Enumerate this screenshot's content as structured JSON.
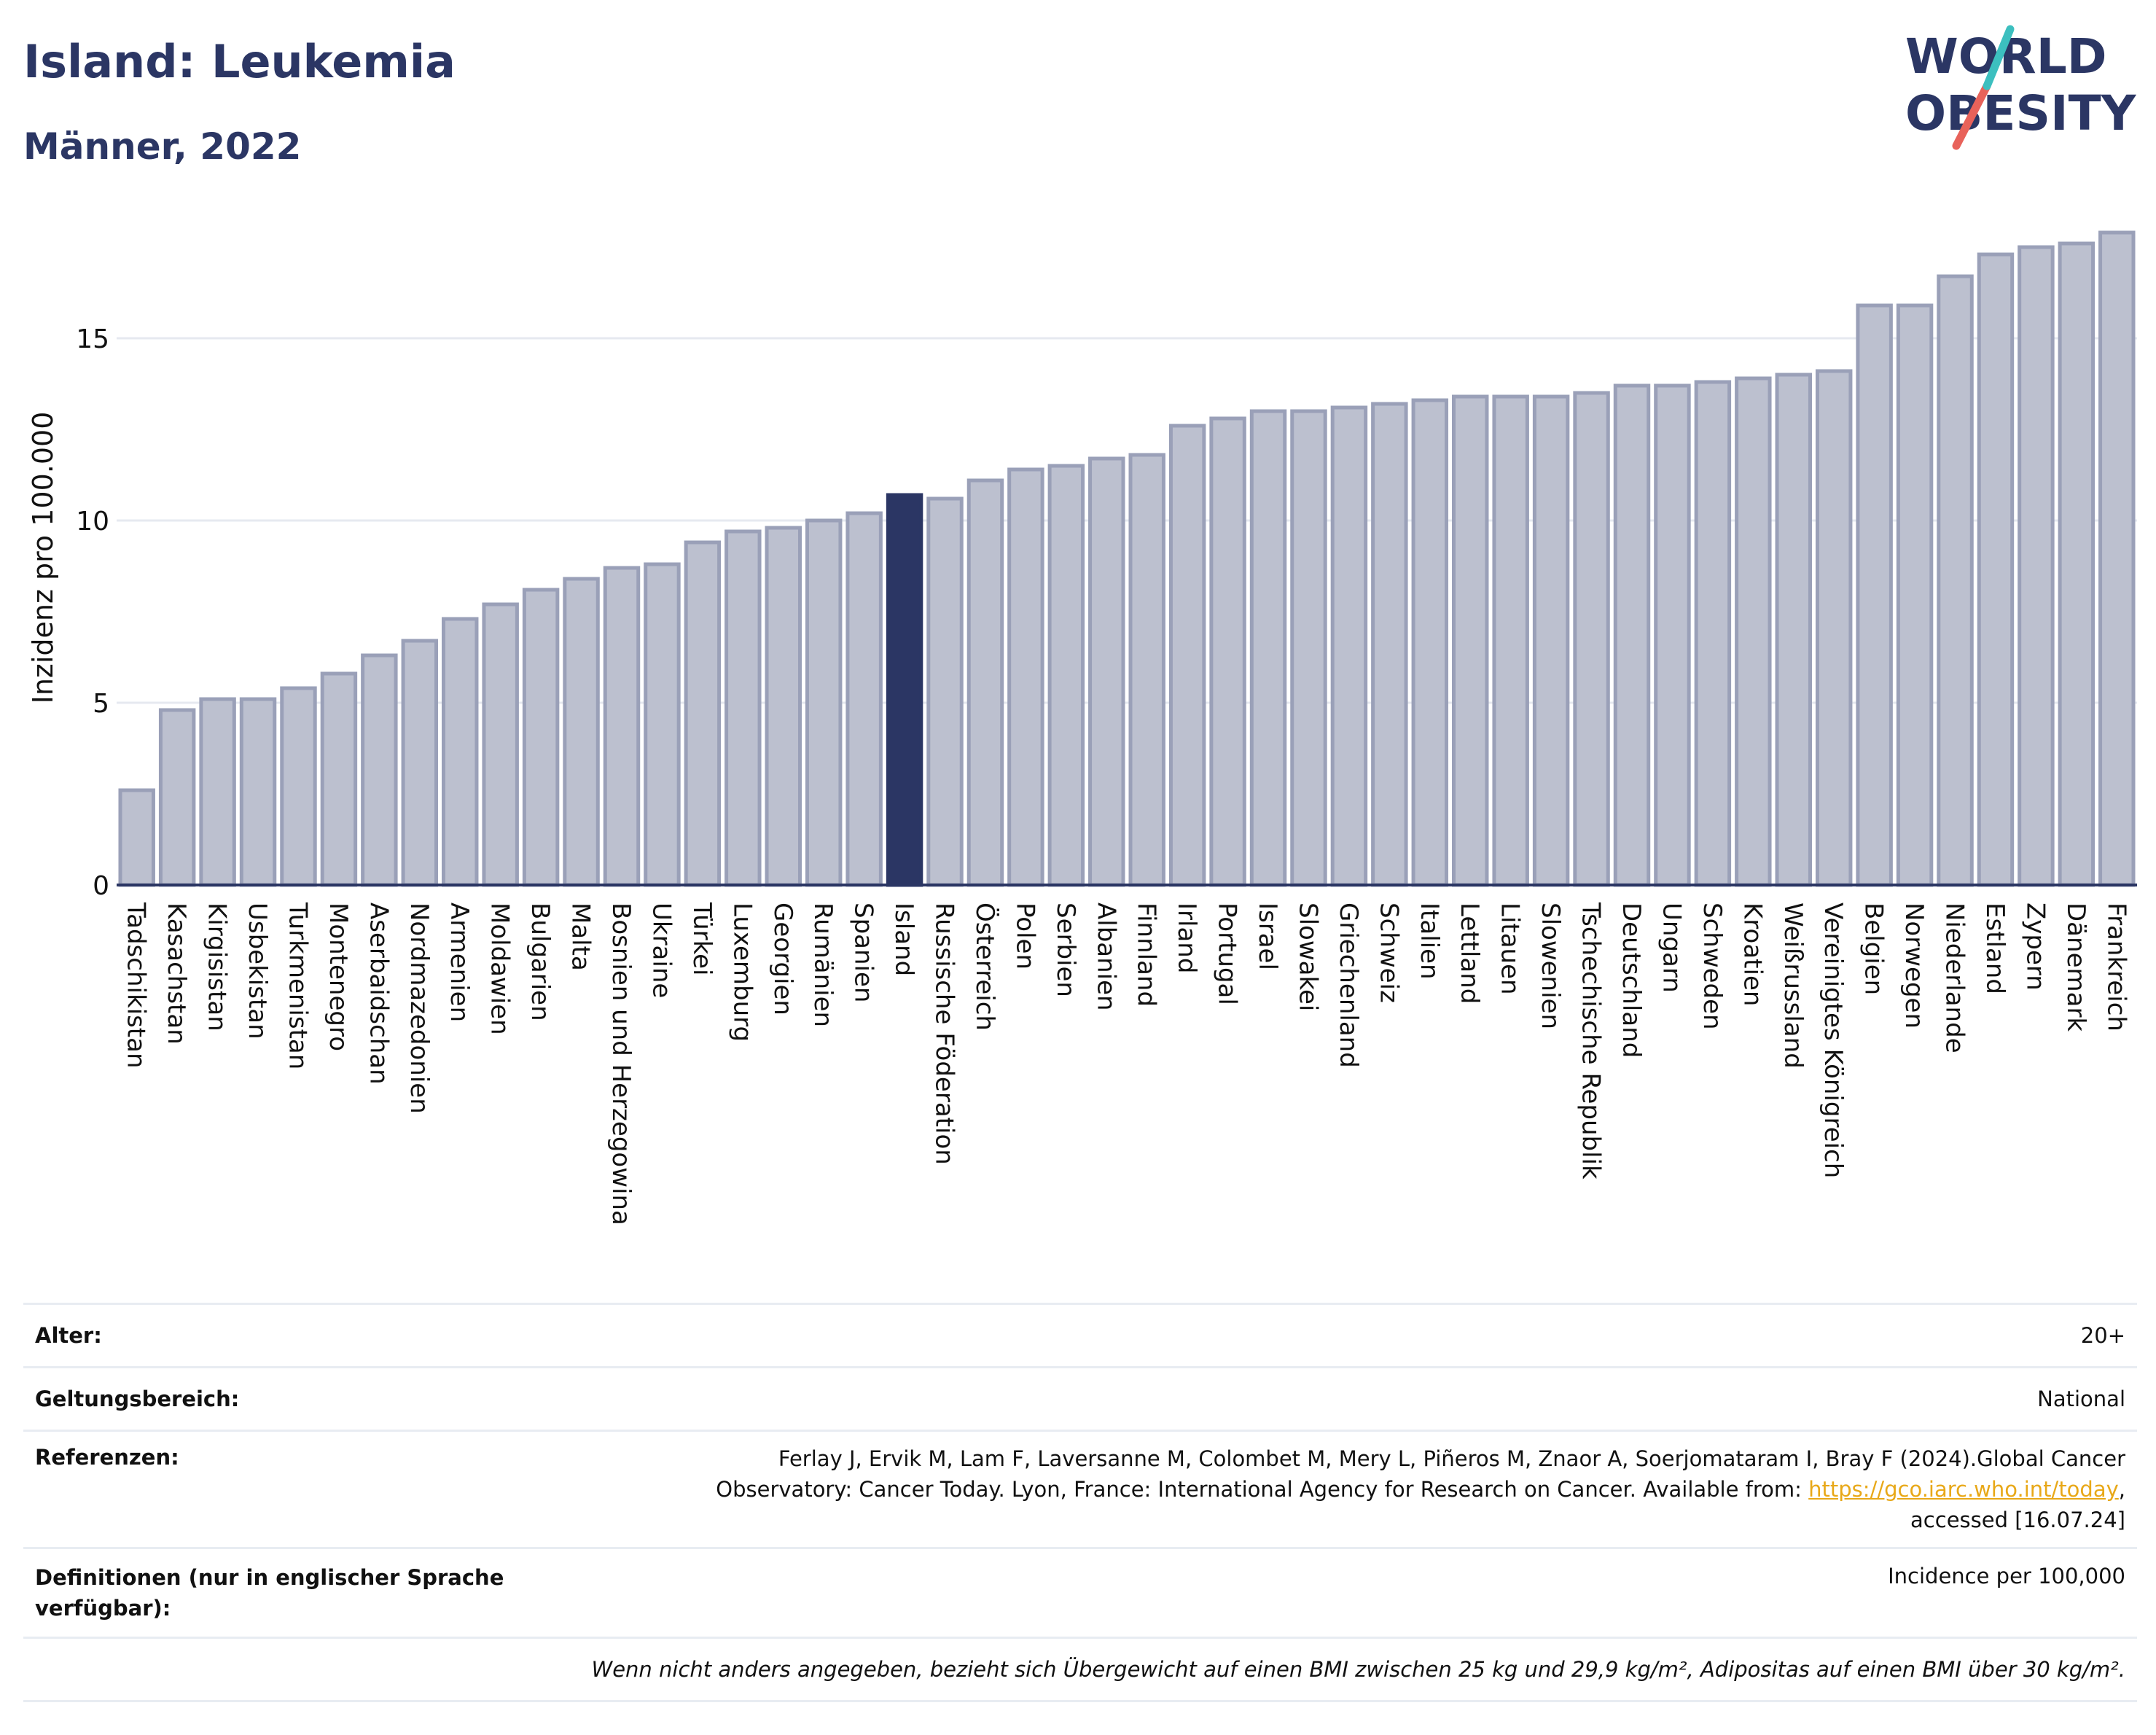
{
  "header": {
    "title": "Island: Leukemia",
    "subtitle": "Männer, 2022"
  },
  "logo": {
    "line1": "WORLD",
    "line2": "OBESITY"
  },
  "colors": {
    "bar": "#bcc0cf",
    "bar_border": "#9aa0b8",
    "highlight": "#2b3664",
    "grid": "#e6e9f0",
    "axis": "#2b3664"
  },
  "chart_data": {
    "type": "bar",
    "ylabel": "Inzidenz pro 100.000",
    "ylim": [
      0,
      18
    ],
    "yticks": [
      0,
      5,
      10,
      15
    ],
    "highlight": "Island",
    "categories": [
      "Tadschikistan",
      "Kasachstan",
      "Kirgisistan",
      "Usbekistan",
      "Turkmenistan",
      "Montenegro",
      "Aserbaidschan",
      "Nordmazedonien",
      "Armenien",
      "Moldawien",
      "Bulgarien",
      "Malta",
      "Bosnien und Herzegowina",
      "Ukraine",
      "Türkei",
      "Luxemburg",
      "Georgien",
      "Rumänien",
      "Spanien",
      "Island",
      "Russische Föderation",
      "Österreich",
      "Polen",
      "Serbien",
      "Albanien",
      "Finnland",
      "Irland",
      "Portugal",
      "Israel",
      "Slowakei",
      "Griechenland",
      "Schweiz",
      "Italien",
      "Lettland",
      "Litauen",
      "Slowenien",
      "Tschechische Republik",
      "Deutschland",
      "Ungarn",
      "Schweden",
      "Kroatien",
      "Weißrussland",
      "Vereinigtes Königreich",
      "Belgien",
      "Norwegen",
      "Niederlande",
      "Estland",
      "Zypern",
      "Dänemark",
      "Frankreich"
    ],
    "values": [
      2.6,
      4.8,
      5.1,
      5.1,
      5.4,
      5.8,
      6.3,
      6.7,
      7.3,
      7.7,
      8.1,
      8.4,
      8.7,
      8.8,
      9.4,
      9.7,
      9.8,
      10.0,
      10.2,
      10.7,
      10.6,
      11.1,
      11.4,
      11.5,
      11.7,
      11.8,
      12.6,
      12.8,
      13.0,
      13.0,
      13.1,
      13.2,
      13.3,
      13.4,
      13.4,
      13.4,
      13.5,
      13.7,
      13.7,
      13.8,
      13.9,
      14.0,
      14.1,
      15.9,
      15.9,
      16.7,
      17.3,
      17.5,
      17.6,
      17.9
    ]
  },
  "meta": {
    "rows": [
      {
        "key": "Alter:",
        "value": "20+"
      },
      {
        "key": "Geltungsbereich:",
        "value": "National"
      }
    ],
    "references": {
      "key": "Referenzen:",
      "line1": "Ferlay J, Ervik M, Lam F, Laversanne M, Colombet M, Mery L, Piñeros M, Znaor A, Soerjomataram I, Bray F (2024).Global Cancer",
      "line2": "Observatory: Cancer Today. Lyon, France: International Agency for Research on Cancer. Available from: ",
      "link": "https://gco.iarc.who.int/today",
      "line2_end": ",",
      "line3": "accessed [16.07.24]"
    },
    "definitions": {
      "key": "Definitionen (nur in englischer Sprache verfügbar):",
      "value": "Incidence per 100,000"
    },
    "note": "Wenn nicht anders angegeben, bezieht sich Übergewicht auf einen BMI zwischen 25 kg und 29,9 kg/m², Adipositas auf einen BMI über 30 kg/m²."
  }
}
